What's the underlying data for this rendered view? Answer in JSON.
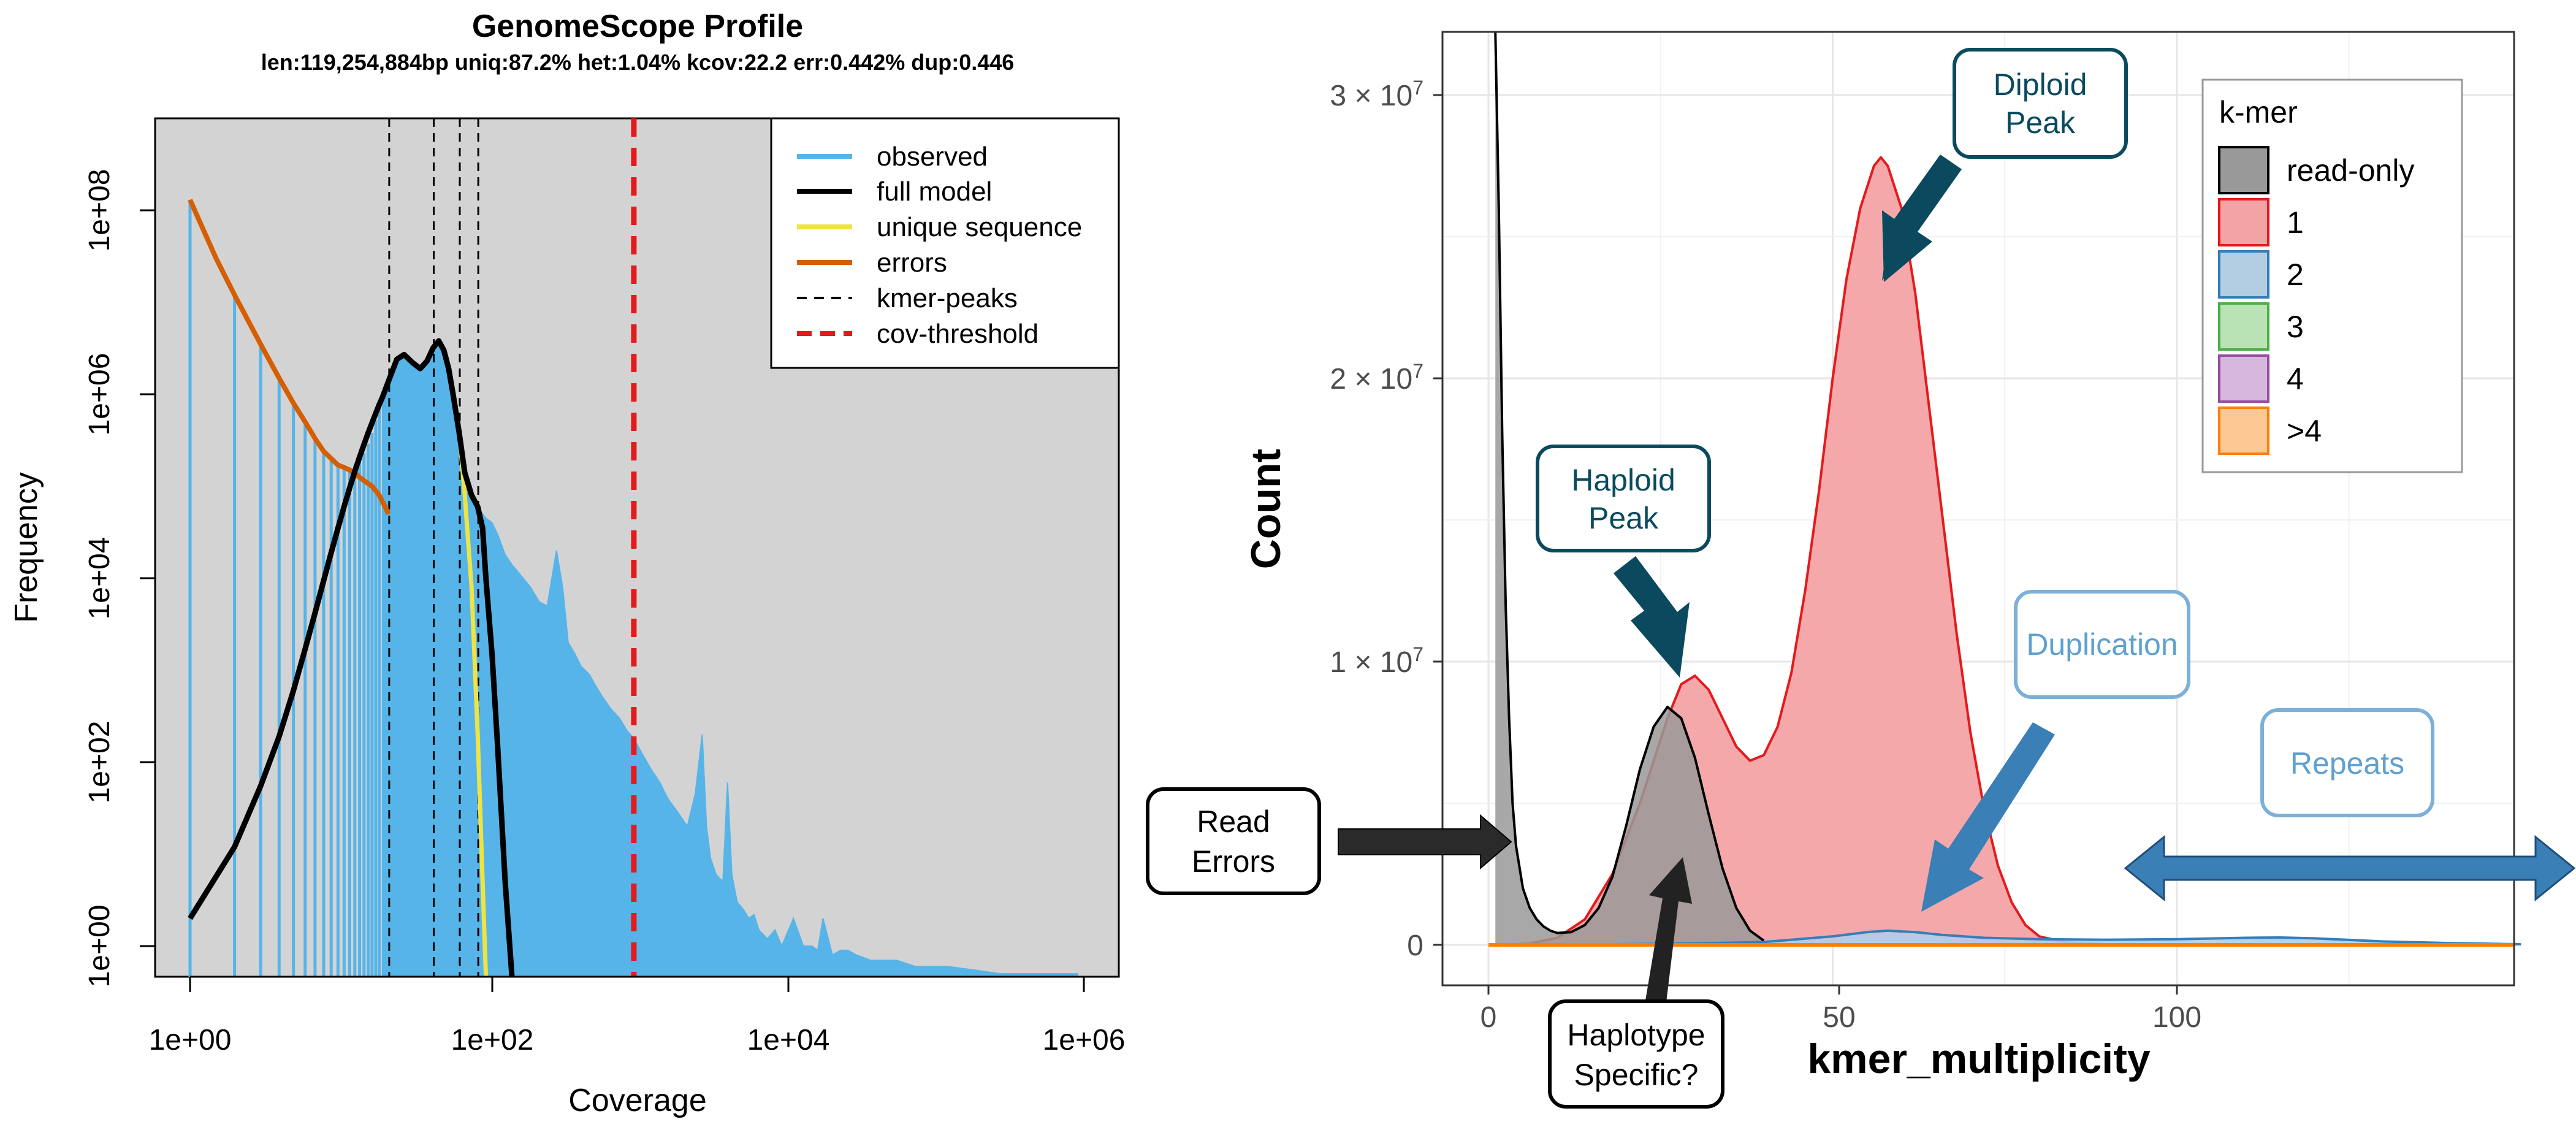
{
  "chart_data": [
    {
      "type": "line",
      "title": "GenomeScope Profile",
      "subtitle": "len:119,254,884bp uniq:87.2% het:1.04% kcov:22.2 err:0.442% dup:0.446",
      "xlabel": "Coverage",
      "ylabel": "Frequency",
      "x_scale": "log10",
      "y_scale": "log10",
      "xlim": [
        0.55,
        1900000
      ],
      "ylim": [
        0.4,
        100000000
      ],
      "x_ticks": [
        "1e+00",
        "1e+02",
        "1e+04",
        "1e+06"
      ],
      "y_ticks": [
        "1e+00",
        "1e+02",
        "1e+04",
        "1e+06",
        "1e+08"
      ],
      "background": "#d3d3d3",
      "legend_position": "top-right",
      "legend": [
        {
          "label": "observed",
          "color": "#56b4e9",
          "style": "solid"
        },
        {
          "label": "full model",
          "color": "#000000",
          "style": "solid"
        },
        {
          "label": "unique sequence",
          "color": "#f0e442",
          "style": "solid"
        },
        {
          "label": "errors",
          "color": "#d55e00",
          "style": "solid"
        },
        {
          "label": "kmer-peaks",
          "color": "#000000",
          "style": "dashed"
        },
        {
          "label": "cov-threshold",
          "color": "#e41a1c",
          "style": "dashed"
        }
      ],
      "series": [
        {
          "name": "observed",
          "x": [
            1,
            2,
            3,
            4,
            5,
            6,
            7,
            8,
            9,
            10,
            11,
            12,
            13,
            14,
            15,
            16,
            17,
            18,
            19,
            20,
            22,
            25,
            28,
            32,
            36,
            40,
            44,
            48,
            52,
            56,
            60,
            66,
            72,
            80,
            88,
            95,
            100,
            110,
            120,
            135,
            150,
            170,
            200,
            230,
            260,
            300,
            330,
            360,
            400,
            440,
            500,
            560,
            620,
            700,
            800,
            900,
            1000,
            1150,
            1300,
            1500,
            1700,
            2000,
            2300,
            2600,
            2900,
            3100,
            3300,
            3600,
            4000,
            4300,
            4600,
            5000,
            5500,
            6000,
            6500,
            7000,
            8000,
            9000,
            10000,
            12000,
            14000,
            16000,
            17500,
            19000,
            22000,
            25000,
            28000,
            32000,
            40000,
            50000,
            60000,
            80000,
            100000,
            130000,
            200000,
            300000,
            500000,
            700000,
            1000000
          ],
          "y": [
            130000000,
            12000000,
            3500000,
            1500000,
            800000,
            500000,
            330000,
            240000,
            200000,
            170000,
            160000,
            160000,
            170000,
            190000,
            230000,
            290000,
            380000,
            520000,
            720000,
            950000,
            1500000,
            2400000,
            2700000,
            2200000,
            1900000,
            2300000,
            3200000,
            3800000,
            3000000,
            1900000,
            1000000,
            380000,
            140000,
            80000,
            60000,
            50000,
            45000,
            40000,
            30000,
            18000,
            14000,
            11000,
            8000,
            5500,
            5000,
            20000,
            8000,
            2000,
            1500,
            1100,
            900,
            650,
            500,
            380,
            300,
            220,
            180,
            120,
            85,
            60,
            40,
            28,
            20,
            45,
            200,
            20,
            9,
            6,
            5,
            60,
            6,
            3,
            2.5,
            2,
            2.2,
            1.5,
            1.2,
            1.5,
            1,
            2,
            1,
            1,
            0.9,
            2,
            0.8,
            0.9,
            0.9,
            0.8,
            0.7,
            0.7,
            0.7,
            0.6,
            0.6,
            0.6,
            0.55,
            0.5,
            0.5,
            0.5,
            0.5
          ]
        },
        {
          "name": "full model",
          "x": [
            1,
            2,
            3,
            4,
            5,
            6,
            7,
            8,
            9,
            10,
            11,
            12,
            13,
            14,
            15,
            16,
            17,
            18,
            19,
            20,
            22,
            25,
            28,
            32,
            36,
            40,
            44,
            48,
            52,
            56,
            60,
            66,
            72,
            80,
            88,
            95,
            100,
            110,
            120,
            135,
            150
          ],
          "y": [
            2,
            12,
            55,
            190,
            600,
            1700,
            4200,
            9400,
            19000,
            35000,
            60000,
            96000,
            145000,
            208000,
            285000,
            380000,
            490000,
            620000,
            770000,
            930000,
            1400000,
            2400000,
            2700000,
            2200000,
            1900000,
            2300000,
            3200000,
            3800000,
            3000000,
            1900000,
            1000000,
            380000,
            140000,
            80000,
            60000,
            35000,
            10000,
            1500,
            150,
            5,
            0.4
          ]
        },
        {
          "name": "unique sequence",
          "x": [
            60,
            66,
            72,
            80,
            88,
            95,
            100
          ],
          "y": [
            1000000,
            380000,
            80000,
            8000,
            200,
            5,
            0.4
          ]
        },
        {
          "name": "errors",
          "x": [
            1,
            1.5,
            2,
            3,
            4,
            5,
            6,
            7,
            8,
            9,
            10,
            11,
            12,
            13,
            14,
            15,
            17,
            19,
            22
          ],
          "y": [
            130000000,
            30000000,
            12000000,
            3500000,
            1500000,
            800000,
            500000,
            330000,
            240000,
            200000,
            170000,
            160000,
            150000,
            140000,
            125000,
            115000,
            100000,
            80000,
            50000
          ]
        }
      ],
      "kmer_peaks": [
        22.2,
        44.4,
        66.6,
        88.8
      ],
      "cov_threshold": 1000
    },
    {
      "type": "area",
      "xlabel": "kmer_multiplicity",
      "ylabel": "Count",
      "xlim": [
        -7,
        150
      ],
      "ylim": [
        -1500000,
        32500000
      ],
      "x_ticks": [
        "0",
        "50",
        "100"
      ],
      "y_ticks": [
        "0",
        "1 × 10⁷",
        "2 × 10⁷",
        "3 × 10⁷"
      ],
      "legend_title": "k-mer",
      "legend_position": "top-right",
      "legend": [
        {
          "label": "read-only",
          "fill": "#999999",
          "stroke": "#000000"
        },
        {
          "label": "1",
          "fill": "#f4a3a5",
          "stroke": "#e41a1c"
        },
        {
          "label": "2",
          "fill": "#b3cde3",
          "stroke": "#377eb8"
        },
        {
          "label": "3",
          "fill": "#b9e3b5",
          "stroke": "#4daf4a"
        },
        {
          "label": "4",
          "fill": "#d6b8de",
          "stroke": "#984ea3"
        },
        {
          "label": ">4",
          "fill": "#fdc894",
          "stroke": "#ff7f00"
        }
      ],
      "series": [
        {
          "name": "read-only",
          "x": [
            1,
            1.5,
            2,
            2.5,
            3,
            3.5,
            4,
            5,
            6,
            7,
            8,
            9,
            10,
            12,
            14,
            16,
            18,
            20,
            22,
            24,
            26,
            28,
            30,
            32,
            34,
            36,
            38,
            40
          ],
          "y": [
            32500000,
            26000000,
            18000000,
            12000000,
            8000000,
            5000000,
            3500000,
            2000000,
            1300000,
            900000,
            650000,
            500000,
            420000,
            450000,
            700000,
            1300000,
            2400000,
            4200000,
            6200000,
            7700000,
            8400000,
            8000000,
            6600000,
            4600000,
            2700000,
            1300000,
            500000,
            150000
          ]
        },
        {
          "name": "1",
          "x": [
            2,
            6,
            10,
            14,
            18,
            22,
            26,
            28,
            30,
            32,
            34,
            36,
            38,
            40,
            42,
            44,
            46,
            48,
            50,
            52,
            54,
            56,
            57,
            58,
            60,
            62,
            64,
            66,
            68,
            70,
            72,
            74,
            76,
            78,
            80,
            84,
            90,
            100
          ],
          "y": [
            0,
            50000,
            250000,
            900000,
            2500000,
            5000000,
            8000000,
            9200000,
            9500000,
            9000000,
            8000000,
            7000000,
            6500000,
            6700000,
            7700000,
            9600000,
            12500000,
            16000000,
            20000000,
            23500000,
            26000000,
            27500000,
            27800000,
            27500000,
            26000000,
            23000000,
            19000000,
            15000000,
            11000000,
            7500000,
            4800000,
            2800000,
            1500000,
            700000,
            300000,
            80000,
            20000,
            0
          ]
        },
        {
          "name": "2",
          "x": [
            10,
            30,
            40,
            50,
            55,
            58,
            62,
            66,
            72,
            80,
            90,
            100,
            110,
            115,
            120,
            130,
            140,
            150
          ],
          "y": [
            0,
            50000,
            100000,
            300000,
            450000,
            500000,
            450000,
            350000,
            250000,
            200000,
            180000,
            200000,
            250000,
            260000,
            230000,
            120000,
            60000,
            20000
          ]
        },
        {
          "name": "3",
          "x": [
            0,
            150
          ],
          "y": [
            0,
            0
          ]
        },
        {
          "name": "4",
          "x": [
            0,
            150
          ],
          "y": [
            0,
            0
          ]
        },
        {
          "name": ">4",
          "x": [
            0,
            150
          ],
          "y": [
            0,
            0
          ]
        }
      ],
      "annotations": [
        "Diploid Peak",
        "Haploid Peak",
        "Duplication",
        "Repeats",
        "Read Errors",
        "Haplotype Specific?"
      ]
    }
  ],
  "left": {
    "title": "GenomeScope Profile",
    "subtitle": "len:119,254,884bp uniq:87.2% het:1.04% kcov:22.2 err:0.442% dup:0.446",
    "xlabel": "Coverage",
    "ylabel": "Frequency",
    "x_ticks": [
      "1e+00",
      "1e+02",
      "1e+04",
      "1e+06"
    ],
    "y_ticks": [
      "1e+00",
      "1e+02",
      "1e+04",
      "1e+06",
      "1e+08"
    ],
    "legend": [
      "observed",
      "full model",
      "unique sequence",
      "errors",
      "kmer-peaks",
      "cov-threshold"
    ]
  },
  "right": {
    "xlabel": "kmer_multiplicity",
    "ylabel": "Count",
    "x_ticks": [
      "0",
      "50",
      "100"
    ],
    "y_ticks": [
      "0",
      "1",
      "2",
      "3"
    ],
    "y_tick_prefix": "× 10",
    "y_tick_exp": "7",
    "legend_title": "k-mer",
    "legend": [
      "read-only",
      "1",
      "2",
      "3",
      "4",
      ">4"
    ],
    "labels": {
      "diploid_1": "Diploid",
      "diploid_2": "Peak",
      "haploid_1": "Haploid",
      "haploid_2": "Peak",
      "duplication": "Duplication",
      "repeats": "Repeats",
      "errors_1": "Read",
      "errors_2": "Errors",
      "hapspec_1": "Haplotype",
      "hapspec_2": "Specific?"
    }
  }
}
